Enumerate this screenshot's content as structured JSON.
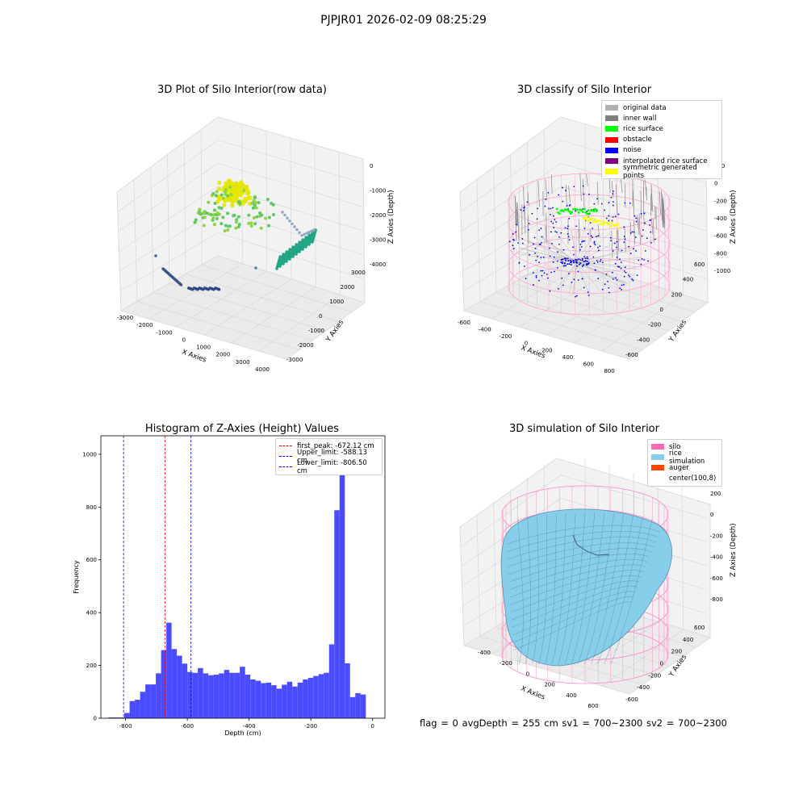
{
  "figure": {
    "title": "PJPJR01 2026-02-09 08:25:29",
    "footer": "flag = 0     avgDepth = 255 cm  sv1 = 700~2300  sv2 = 700~2300"
  },
  "panels": {
    "raw": {
      "title": "3D Plot of Silo Interior(row data)",
      "xlabel": "X Axies",
      "ylabel": "Y Axies",
      "zlabel": "Z Axies (Depth)",
      "xticks": [
        "-3000",
        "-2000",
        "-1000",
        "0",
        "1000",
        "2000",
        "3000",
        "4000"
      ],
      "yticks": [
        "-3000",
        "-2000",
        "-1000",
        "0",
        "1000",
        "2000",
        "3000"
      ],
      "zticks": [
        "0",
        "-1000",
        "-2000",
        "-3000",
        "-4000"
      ]
    },
    "classify": {
      "title": "3D classify of Silo Interior",
      "xlabel": "X Axies",
      "ylabel": "Y Axies",
      "zlabel": "Z Axies (Depth)",
      "xticks": [
        "-600",
        "-400",
        "-200",
        "0",
        "200",
        "400",
        "600",
        "800"
      ],
      "yticks": [
        "-600",
        "-400",
        "-200",
        "0",
        "200",
        "400",
        "600"
      ],
      "zticks": [
        "200",
        "0",
        "-200",
        "-400",
        "-600",
        "-800",
        "-1000"
      ],
      "legend": [
        {
          "label": "original data",
          "color": "#b0b0b0"
        },
        {
          "label": "inner wall",
          "color": "#808080"
        },
        {
          "label": "rice surface",
          "color": "#00ff00"
        },
        {
          "label": "obstacle",
          "color": "#ff0000"
        },
        {
          "label": "noise",
          "color": "#0000ff"
        },
        {
          "label": "interpolated rice surface",
          "color": "#800080"
        },
        {
          "label": "symmetric generated points",
          "color": "#ffff00"
        }
      ]
    },
    "simulation": {
      "title": "3D simulation of Silo Interior",
      "xlabel": "X Axies",
      "ylabel": "Y Axies",
      "zlabel": "Z Axies (Depth)",
      "xticks": [
        "-400",
        "-200",
        "0",
        "200",
        "400",
        "600"
      ],
      "yticks": [
        "-600",
        "-400",
        "-200",
        "0",
        "200",
        "400",
        "600"
      ],
      "zticks": [
        "200",
        "0",
        "-200",
        "-400",
        "-600",
        "-800"
      ],
      "legend": [
        {
          "label": "silo",
          "color": "#ff69b4"
        },
        {
          "label": "rice simulation",
          "color": "#87ceeb"
        },
        {
          "label": "auger",
          "color": "#ff4500"
        },
        {
          "label": "center(100,8)",
          "color": ""
        }
      ]
    }
  },
  "chart_data": {
    "type": "bar",
    "title": "Histogram of Z-Axies (Height) Values",
    "xlabel": "Depth (cm)",
    "ylabel": "Frequency",
    "xlim": [
      -880,
      40
    ],
    "ylim": [
      0,
      1070
    ],
    "xticks": [
      -800,
      -600,
      -400,
      -200,
      0
    ],
    "yticks": [
      0,
      200,
      400,
      600,
      800,
      1000
    ],
    "bin_width": 17,
    "bin_starts": [
      -855,
      -838,
      -821,
      -804,
      -787,
      -770,
      -753,
      -736,
      -719,
      -702,
      -685,
      -668,
      -651,
      -634,
      -617,
      -600,
      -583,
      -566,
      -549,
      -532,
      -515,
      -498,
      -481,
      -464,
      -447,
      -430,
      -413,
      -396,
      -379,
      -362,
      -345,
      -328,
      -311,
      -294,
      -277,
      -260,
      -243,
      -226,
      -209,
      -192,
      -175,
      -158,
      -141,
      -124,
      -107,
      -90,
      -73,
      -56,
      -39,
      -22,
      -5
    ],
    "values": [
      3,
      3,
      3,
      20,
      65,
      70,
      100,
      128,
      128,
      170,
      258,
      362,
      262,
      237,
      207,
      175,
      172,
      190,
      170,
      163,
      165,
      170,
      183,
      172,
      172,
      195,
      165,
      147,
      142,
      133,
      135,
      125,
      112,
      127,
      138,
      120,
      135,
      147,
      153,
      160,
      167,
      172,
      280,
      788,
      1048,
      208,
      80,
      95,
      90,
      0,
      0
    ],
    "reference_lines": [
      {
        "label": "first_peak: -672.12 cm",
        "value": -672.12,
        "color": "#ff0000"
      },
      {
        "label": "Upper_limit: -588.13 cm",
        "value": -588.13,
        "color": "#0000ff"
      },
      {
        "label": "Lower_limit: -806.50 cm",
        "value": -806.5,
        "color": "#0000ff"
      }
    ],
    "bar_color": "#4b4bff",
    "grid": false,
    "legend_position": "top-right"
  }
}
